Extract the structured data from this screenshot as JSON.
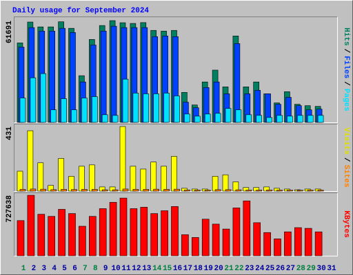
{
  "chart_data": [
    {
      "type": "bar",
      "title": "Daily usage for September 2024",
      "separator": "/",
      "ylim": [
        0,
        61691
      ],
      "yticks": [
        61691
      ],
      "series": [
        {
          "name": "Hits",
          "color": "#008060",
          "values": [
            48170,
            60845,
            57890,
            57890,
            61000,
            57040,
            28310,
            50280,
            58730,
            61691,
            60420,
            60000,
            60500,
            55770,
            55350,
            55770,
            18170,
            10560,
            24510,
            31690,
            21550,
            52390,
            21550,
            24510,
            17320,
            11830,
            18590,
            10990,
            10140,
            9720,
            null
          ]
        },
        {
          "name": "Files",
          "color": "#0040ff",
          "values": [
            45630,
            57460,
            55350,
            55350,
            57040,
            54510,
            24510,
            46900,
            55350,
            58310,
            57460,
            57460,
            57460,
            51970,
            52390,
            51970,
            12250,
            8870,
            21130,
            24510,
            17320,
            47750,
            17320,
            19440,
            17320,
            10990,
            15210,
            10140,
            7610,
            8030,
            null
          ]
        },
        {
          "name": "Pages",
          "color": "#00e0ff",
          "values": [
            14790,
            27040,
            29580,
            7610,
            14370,
            7610,
            14790,
            15630,
            4650,
            4230,
            26200,
            17750,
            17320,
            17320,
            17750,
            16060,
            5070,
            3800,
            5070,
            5490,
            8450,
            7610,
            4650,
            4230,
            2960,
            4230,
            3800,
            4230,
            4230,
            4230,
            null
          ]
        }
      ]
    },
    {
      "type": "bar",
      "separator": "/",
      "ylim": [
        0,
        431
      ],
      "yticks": [
        431
      ],
      "series": [
        {
          "name": "Visits",
          "color": "#ffff00",
          "values": [
            133,
            403,
            189,
            38,
            218,
            99,
            166,
            175,
            28,
            28,
            431,
            166,
            147,
            194,
            166,
            232,
            19,
            14,
            14,
            99,
            109,
            62,
            24,
            24,
            28,
            19,
            14,
            9,
            14,
            14,
            null
          ]
        },
        {
          "name": "Sites",
          "color": "#ff8000",
          "values": [
            12,
            14,
            13,
            10,
            12,
            11,
            12,
            12,
            9,
            9,
            14,
            12,
            12,
            13,
            12,
            13,
            8,
            7,
            7,
            10,
            10,
            9,
            7,
            7,
            8,
            7,
            7,
            6,
            7,
            7,
            null
          ]
        }
      ]
    },
    {
      "type": "bar",
      "ylim": [
        0,
        727638
      ],
      "yticks": [
        727638
      ],
      "categories": [
        "1",
        "2",
        "3",
        "4",
        "5",
        "6",
        "7",
        "8",
        "9",
        "10",
        "11",
        "12",
        "13",
        "14",
        "15",
        "16",
        "17",
        "18",
        "19",
        "20",
        "21",
        "22",
        "23",
        "24",
        "25",
        "26",
        "27",
        "28",
        "29",
        "30",
        "31"
      ],
      "category_colors": [
        "#008040",
        "#0000a0",
        "#0000a0",
        "#0000a0",
        "#0000a0",
        "#0000a0",
        "#008040",
        "#008040",
        "#0000a0",
        "#0000a0",
        "#0000a0",
        "#0000a0",
        "#0000a0",
        "#008040",
        "#008040",
        "#0000a0",
        "#0000a0",
        "#0000a0",
        "#0000a0",
        "#0000a0",
        "#008040",
        "#008040",
        "#0000a0",
        "#0000a0",
        "#0000a0",
        "#0000a0",
        "#0000a0",
        "#008040",
        "#008040",
        "#0000a0",
        "#0000a0"
      ],
      "series": [
        {
          "name": "KBytes",
          "color": "#ff0000",
          "values": [
            423045,
            727638,
            499193,
            473809,
            558419,
            507654,
            355358,
            473809,
            566880,
            643030,
            693796,
            566880,
            583802,
            507654,
            541498,
            592264,
            253827,
            219984,
            439967,
            380741,
            321514,
            575341,
            659950,
            397660,
            279210,
            203062,
            287672,
            338437,
            329977,
            287672,
            null
          ]
        }
      ]
    }
  ]
}
